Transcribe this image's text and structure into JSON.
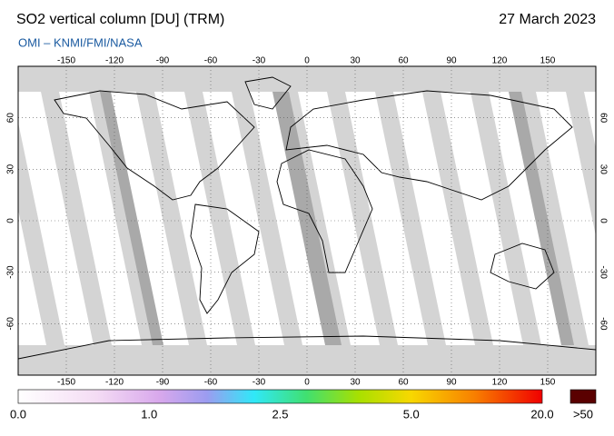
{
  "header": {
    "title": "SO2 vertical column [DU] (TRM)",
    "date": "27 March 2023",
    "credit": "OMI  –  KNMI/FMI/NASA"
  },
  "map": {
    "lon_range": [
      -180,
      180
    ],
    "lat_range": [
      -90,
      90
    ],
    "lon_ticks": [
      -150,
      -120,
      -90,
      -60,
      -30,
      0,
      30,
      60,
      90,
      120,
      150
    ],
    "lat_ticks": [
      60,
      30,
      0,
      -30,
      -60
    ]
  },
  "colorbar": {
    "labels": [
      "0.0",
      "1.0",
      "2.5",
      "5.0",
      "20.0"
    ],
    "overflow_label": ">50"
  }
}
